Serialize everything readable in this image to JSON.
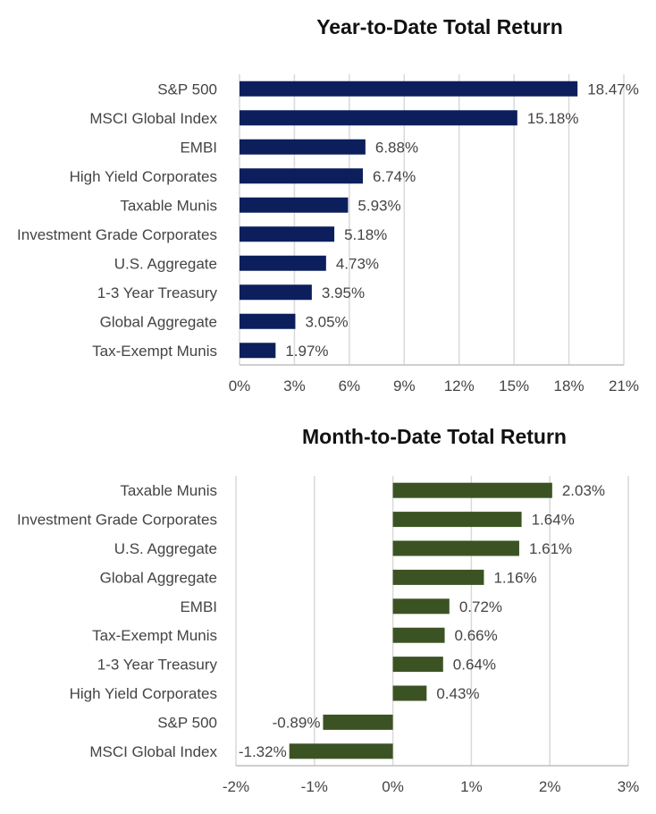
{
  "colors": {
    "ytd_bar": "#0c1f5c",
    "mtd_bar": "#3b5323",
    "grid": "#d9d9d9",
    "axis": "#bfbfbf"
  },
  "chart_data": [
    {
      "type": "bar",
      "orientation": "horizontal",
      "title": "Year-to-Date Total Return",
      "categories": [
        "S&P 500",
        "MSCI Global Index",
        "EMBI",
        "High Yield Corporates",
        "Taxable Munis",
        "Investment Grade Corporates",
        "U.S. Aggregate",
        "1-3 Year Treasury",
        "Global Aggregate",
        "Tax-Exempt Munis"
      ],
      "values": [
        18.47,
        15.18,
        6.88,
        6.74,
        5.93,
        5.18,
        4.73,
        3.95,
        3.05,
        1.97
      ],
      "data_labels": [
        "18.47%",
        "15.18%",
        "6.88%",
        "6.74%",
        "5.93%",
        "5.18%",
        "4.73%",
        "3.95%",
        "3.05%",
        "1.97%"
      ],
      "xlim": [
        0,
        21
      ],
      "xticks": [
        0,
        3,
        6,
        9,
        12,
        15,
        18,
        21
      ],
      "xtick_labels": [
        "0%",
        "3%",
        "6%",
        "9%",
        "12%",
        "15%",
        "18%",
        "21%"
      ],
      "grid": true,
      "color": "#0c1f5c"
    },
    {
      "type": "bar",
      "orientation": "horizontal",
      "title": "Month-to-Date Total Return",
      "categories": [
        "Taxable Munis",
        "Investment Grade Corporates",
        "U.S. Aggregate",
        "Global Aggregate",
        "EMBI",
        "Tax-Exempt Munis",
        "1-3 Year Treasury",
        "High Yield Corporates",
        "S&P 500",
        "MSCI Global Index"
      ],
      "values": [
        2.03,
        1.64,
        1.61,
        1.16,
        0.72,
        0.66,
        0.64,
        0.43,
        -0.89,
        -1.32
      ],
      "data_labels": [
        "2.03%",
        "1.64%",
        "1.61%",
        "1.16%",
        "0.72%",
        "0.66%",
        "0.64%",
        "0.43%",
        "-0.89%",
        "-1.32%"
      ],
      "xlim": [
        -2,
        3
      ],
      "xticks": [
        -2,
        -1,
        0,
        1,
        2,
        3
      ],
      "xtick_labels": [
        "-2%",
        "-1%",
        "0%",
        "1%",
        "2%",
        "3%"
      ],
      "grid": true,
      "color": "#3b5323"
    }
  ]
}
